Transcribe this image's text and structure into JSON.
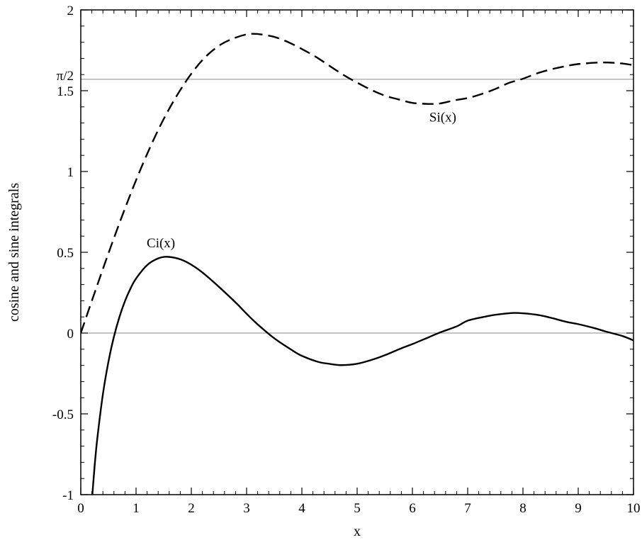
{
  "chart_data": {
    "type": "line",
    "title": "",
    "xlabel": "x",
    "ylabel": "cosine and sine integrals",
    "xlim": [
      0,
      10
    ],
    "ylim": [
      -1,
      2
    ],
    "grid": false,
    "x_ticks": [
      0,
      1,
      2,
      3,
      4,
      5,
      6,
      7,
      8,
      9,
      10
    ],
    "x_tick_labels": [
      "0",
      "1",
      "2",
      "3",
      "4",
      "5",
      "6",
      "7",
      "8",
      "9",
      "10"
    ],
    "y_ticks": [
      -1,
      -0.5,
      0,
      0.5,
      1,
      1.5,
      2
    ],
    "y_tick_labels": [
      "-1",
      "-0.5",
      "0",
      "0.5",
      "1",
      "1.5",
      "2"
    ],
    "reference_lines": [
      {
        "y": 1.5708,
        "label": "π/2"
      },
      {
        "y": 0,
        "label": ""
      }
    ],
    "series": [
      {
        "name": "Ci(x)",
        "style": "solid",
        "x": [
          0.2,
          0.25,
          0.3,
          0.4,
          0.5,
          0.6,
          0.7,
          0.8,
          0.9,
          1.0,
          1.2,
          1.4,
          1.5708,
          1.8,
          2.0,
          2.2,
          2.5,
          2.8,
          3.0,
          3.2,
          3.5,
          3.8,
          4.0,
          4.3,
          4.5,
          4.7124,
          5.0,
          5.3,
          5.5,
          5.8,
          6.0,
          6.3,
          6.5,
          6.8,
          7.0,
          7.3,
          7.5,
          7.8,
          8.0,
          8.3,
          8.5,
          8.8,
          9.0,
          9.3,
          9.5,
          9.8,
          10.0
        ],
        "y": [
          -1.0422,
          -0.8247,
          -0.6491,
          -0.3788,
          -0.1778,
          -0.0223,
          0.1005,
          0.1983,
          0.2761,
          0.3374,
          0.4205,
          0.462,
          0.472,
          0.4565,
          0.423,
          0.3751,
          0.2859,
          0.1895,
          0.1196,
          0.0537,
          -0.0321,
          -0.101,
          -0.141,
          -0.1788,
          -0.1906,
          -0.1984,
          -0.19,
          -0.1619,
          -0.1372,
          -0.0944,
          -0.0681,
          -0.0251,
          0.0038,
          0.0413,
          0.0767,
          0.1005,
          0.113,
          0.1242,
          0.1224,
          0.1105,
          0.0951,
          0.0682,
          0.0553,
          0.0298,
          0.0094,
          -0.0183,
          -0.0455
        ]
      },
      {
        "name": "Si(x)",
        "style": "dashed",
        "x": [
          0,
          0.25,
          0.5,
          0.75,
          1.0,
          1.25,
          1.5,
          1.75,
          2.0,
          2.25,
          2.5,
          2.75,
          3.0,
          3.1416,
          3.25,
          3.5,
          3.75,
          4.0,
          4.25,
          4.5,
          4.75,
          5.0,
          5.25,
          5.5,
          5.75,
          6.0,
          6.2832,
          6.5,
          6.75,
          7.0,
          7.25,
          7.5,
          7.75,
          8.0,
          8.25,
          8.5,
          8.75,
          9.0,
          9.4248,
          9.75,
          10.0
        ],
        "y": [
          0,
          0.2491,
          0.4931,
          0.7266,
          0.9461,
          1.1466,
          1.3247,
          1.4762,
          1.6054,
          1.7072,
          1.7785,
          1.822,
          1.8487,
          1.8519,
          1.849,
          1.8331,
          1.8011,
          1.7582,
          1.7103,
          1.6541,
          1.5981,
          1.5499,
          1.5061,
          1.4698,
          1.4461,
          1.4247,
          1.4182,
          1.421,
          1.4397,
          1.4546,
          1.4792,
          1.5107,
          1.5486,
          1.5742,
          1.6068,
          1.6313,
          1.6501,
          1.665,
          1.6747,
          1.67,
          1.6583
        ]
      }
    ],
    "annotations": [
      {
        "text": "Ci(x)",
        "x": 1.45,
        "y": 0.53
      },
      {
        "text": "Si(x)",
        "x": 6.55,
        "y": 1.31
      }
    ]
  }
}
